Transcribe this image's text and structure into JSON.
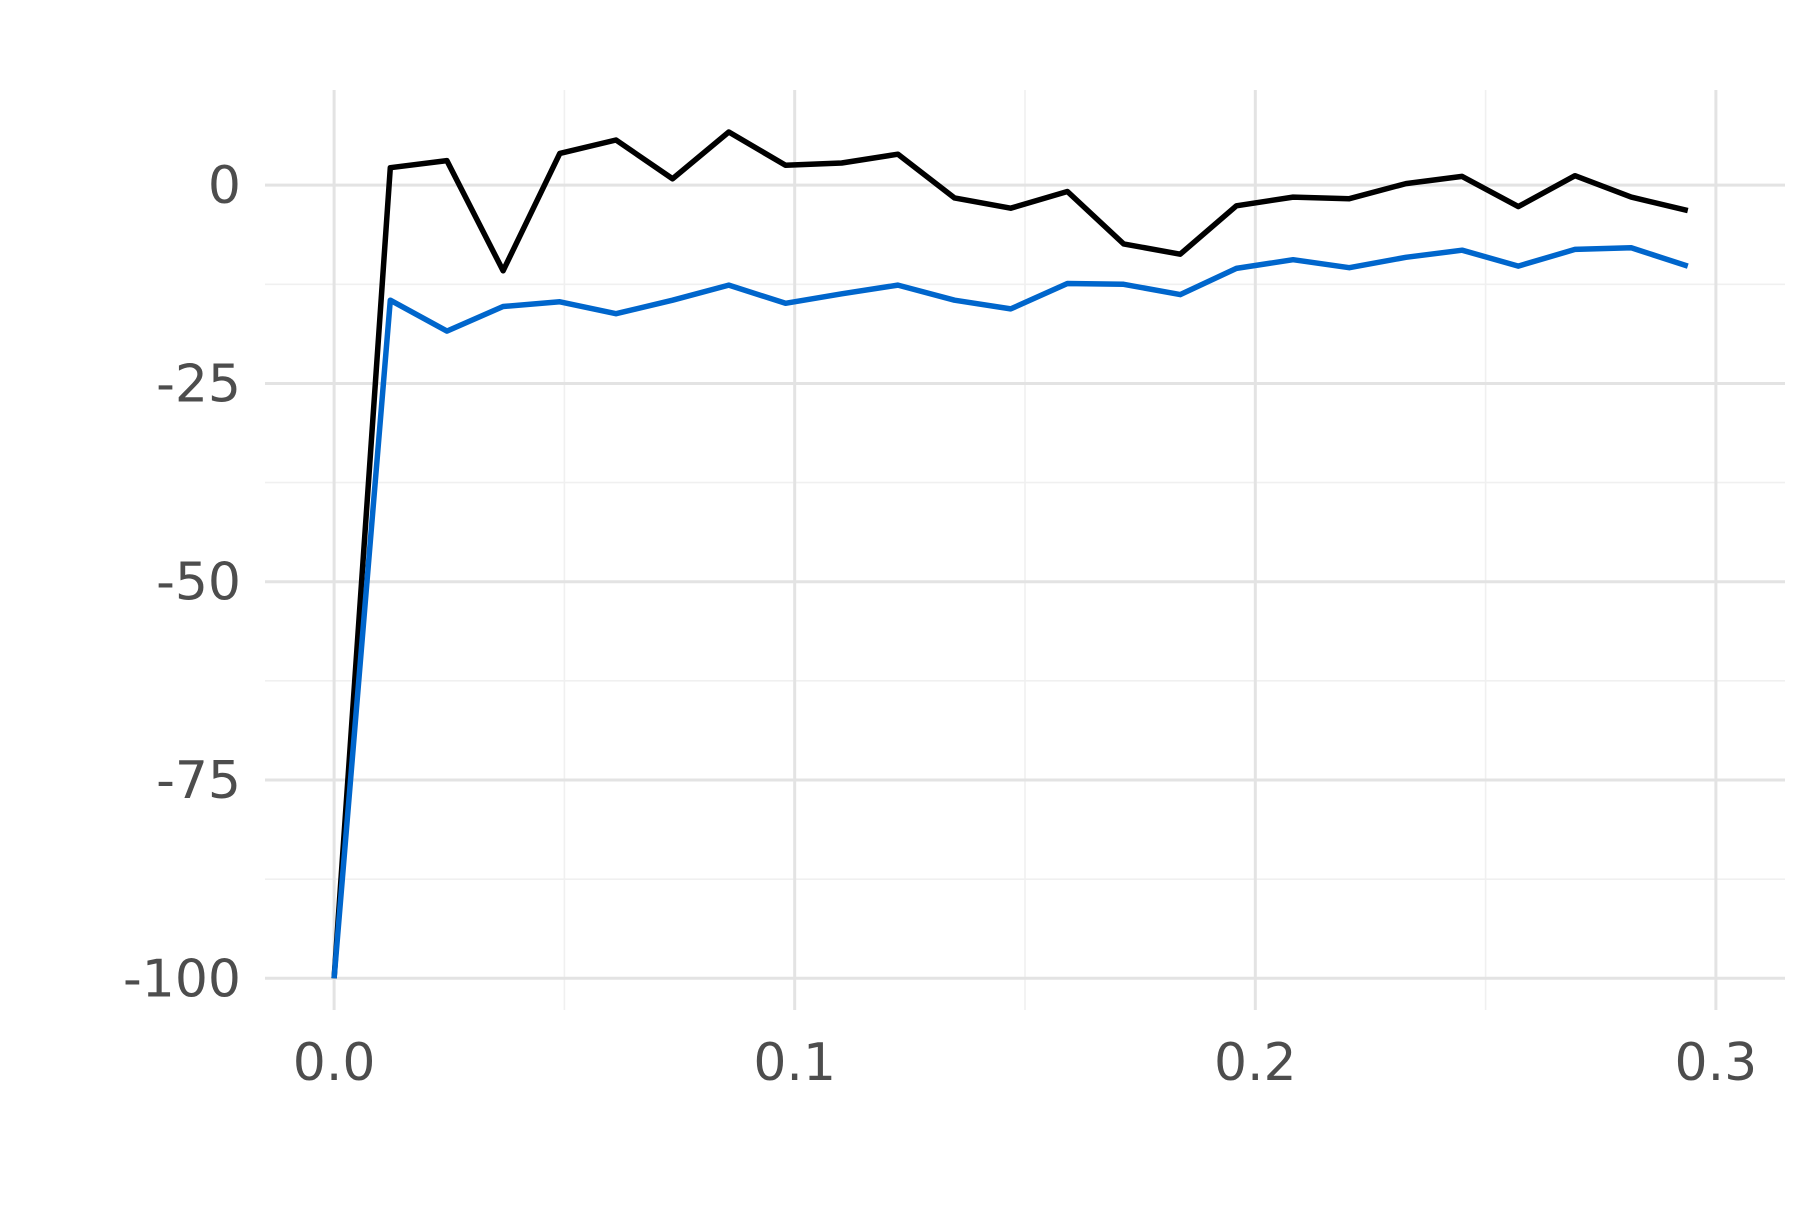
{
  "chart_data": {
    "type": "line",
    "title": "",
    "xlabel": "",
    "ylabel": "",
    "xlim": [
      -0.015,
      0.315
    ],
    "ylim": [
      -104,
      12
    ],
    "x_ticks": [
      0.0,
      0.1,
      0.2,
      0.3
    ],
    "x_tick_labels": [
      "0.0",
      "0.1",
      "0.2",
      "0.3"
    ],
    "y_ticks": [
      0,
      -25,
      -50,
      -75,
      -100
    ],
    "y_tick_labels": [
      "0",
      "-25",
      "-50",
      "-75",
      "-100"
    ],
    "x_minor_ticks": [
      0.05,
      0.15,
      0.25
    ],
    "y_minor_ticks": [
      -12.5,
      -37.5,
      -62.5,
      -87.5
    ],
    "grid": true,
    "legend": "none",
    "x": [
      0.0,
      0.0122,
      0.0245,
      0.0367,
      0.049,
      0.0612,
      0.0735,
      0.0857,
      0.098,
      0.1102,
      0.1224,
      0.1347,
      0.1469,
      0.1592,
      0.1714,
      0.1837,
      0.1959,
      0.2082,
      0.2204,
      0.2327,
      0.2449,
      0.2571,
      0.2694,
      0.2816,
      0.2939
    ],
    "series": [
      {
        "color": "#000000",
        "values": [
          -100,
          2.2,
          3.1,
          -10.8,
          4.0,
          5.7,
          0.8,
          6.7,
          2.5,
          2.8,
          3.9,
          -1.6,
          -2.9,
          -0.8,
          -7.4,
          -8.7,
          -2.6,
          -1.5,
          -1.7,
          0.2,
          1.1,
          -2.7,
          1.2,
          -1.5,
          -3.2
        ]
      },
      {
        "color": "#0066cc",
        "values": [
          -100,
          -14.5,
          -18.4,
          -15.3,
          -14.7,
          -16.2,
          -14.5,
          -12.6,
          -14.9,
          -13.7,
          -12.6,
          -14.5,
          -15.6,
          -12.4,
          -12.5,
          -13.8,
          -10.5,
          -9.4,
          -10.4,
          -9.1,
          -8.2,
          -10.2,
          -8.1,
          -7.9,
          -10.2
        ]
      }
    ]
  }
}
